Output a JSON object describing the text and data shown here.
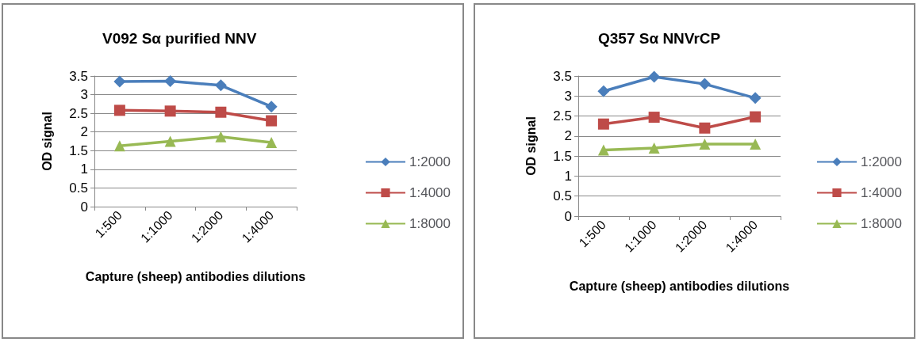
{
  "chart_data": [
    {
      "type": "line",
      "title": "V092 Sα purified NNV",
      "xlabel": "Capture (sheep) antibodies dilutions",
      "ylabel": "OD signal",
      "categories": [
        "1:500",
        "1:1000",
        "1:2000",
        "1:4000"
      ],
      "series": [
        {
          "name": "1:2000",
          "color": "#4a7ebb",
          "marker": "diamond",
          "values": [
            3.35,
            3.36,
            3.25,
            2.68
          ]
        },
        {
          "name": "1:4000",
          "color": "#be4b48",
          "marker": "square",
          "values": [
            2.58,
            2.56,
            2.53,
            2.3
          ]
        },
        {
          "name": "1:8000",
          "color": "#98b954",
          "marker": "triangle",
          "values": [
            1.63,
            1.75,
            1.87,
            1.72
          ]
        }
      ],
      "ylim": [
        0,
        3.5
      ],
      "yticks": [
        0,
        0.5,
        1,
        1.5,
        2,
        2.5,
        3,
        3.5
      ],
      "grid": "y",
      "legend": "right"
    },
    {
      "type": "line",
      "title": "Q357 Sα NNVrCP",
      "xlabel": "Capture (sheep) antibodies dilutions",
      "ylabel": "OD signal",
      "categories": [
        "1:500",
        "1:1000",
        "1:2000",
        "1:4000"
      ],
      "series": [
        {
          "name": "1:2000",
          "color": "#4a7ebb",
          "marker": "diamond",
          "values": [
            3.12,
            3.48,
            3.3,
            2.95
          ]
        },
        {
          "name": "1:4000",
          "color": "#be4b48",
          "marker": "square",
          "values": [
            2.3,
            2.47,
            2.2,
            2.48
          ]
        },
        {
          "name": "1:8000",
          "color": "#98b954",
          "marker": "triangle",
          "values": [
            1.65,
            1.7,
            1.8,
            1.8
          ]
        }
      ],
      "ylim": [
        0,
        3.5
      ],
      "yticks": [
        0,
        0.5,
        1,
        1.5,
        2,
        2.5,
        3,
        3.5
      ],
      "grid": "y",
      "legend": "right"
    }
  ]
}
